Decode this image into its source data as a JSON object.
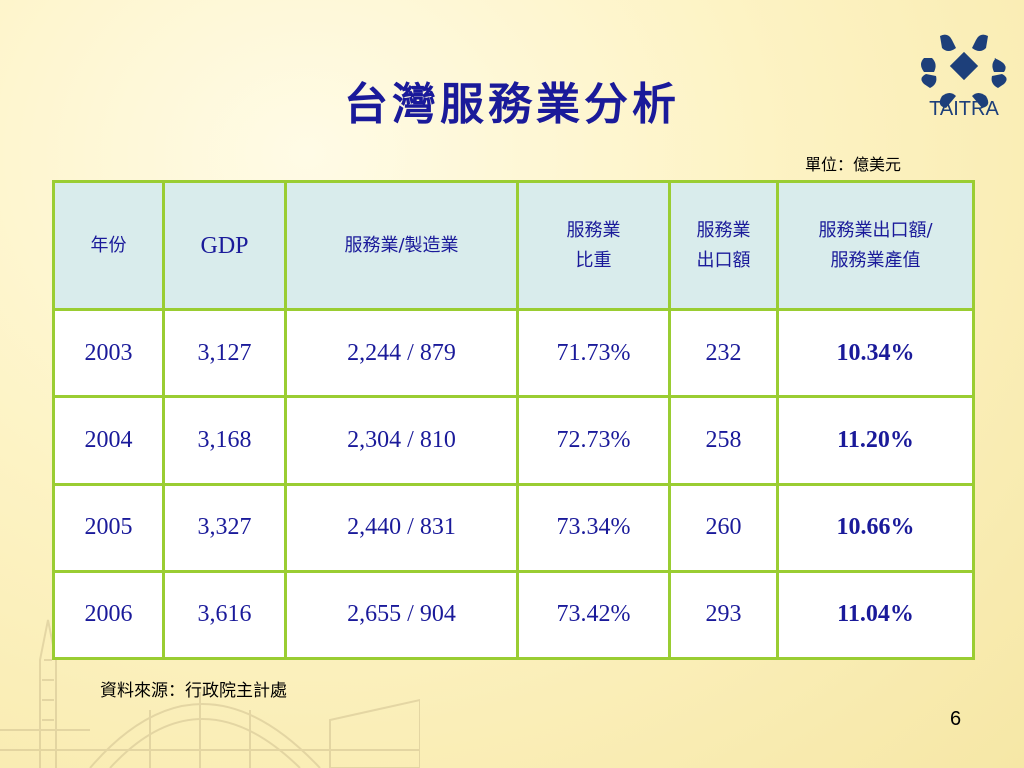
{
  "title": "台灣服務業分析",
  "logo": {
    "text": "TAITRA",
    "icon": "taitra-logo"
  },
  "unit_note": "單位：億美元",
  "table": {
    "headers": [
      "年份",
      "GDP",
      "服務業/製造業",
      "服務業比重",
      "服務業出口額",
      "服務業出口額/服務業產值"
    ],
    "header_lines": {
      "share": [
        "服務業",
        "比重"
      ],
      "export": [
        "服務業",
        "出口額"
      ],
      "ratio": [
        "服務業出口額/",
        "服務業產值"
      ]
    },
    "rows": [
      [
        "2003",
        "3,127",
        "2,244 / 879",
        "71.73%",
        "232",
        "10.34%"
      ],
      [
        "2004",
        "3,168",
        "2,304 / 810",
        "72.73%",
        "258",
        "11.20%"
      ],
      [
        "2005",
        "3,327",
        "2,440 / 831",
        "73.34%",
        "260",
        "10.66%"
      ],
      [
        "2006",
        "3,616",
        "2,655 / 904",
        "73.42%",
        "293",
        "11.04%"
      ]
    ]
  },
  "source": "資料來源：行政院主計處",
  "page_number": "6",
  "colors": {
    "title": "#1a1a9a",
    "border": "#9acd32",
    "header_bg": "#d9ecec"
  }
}
